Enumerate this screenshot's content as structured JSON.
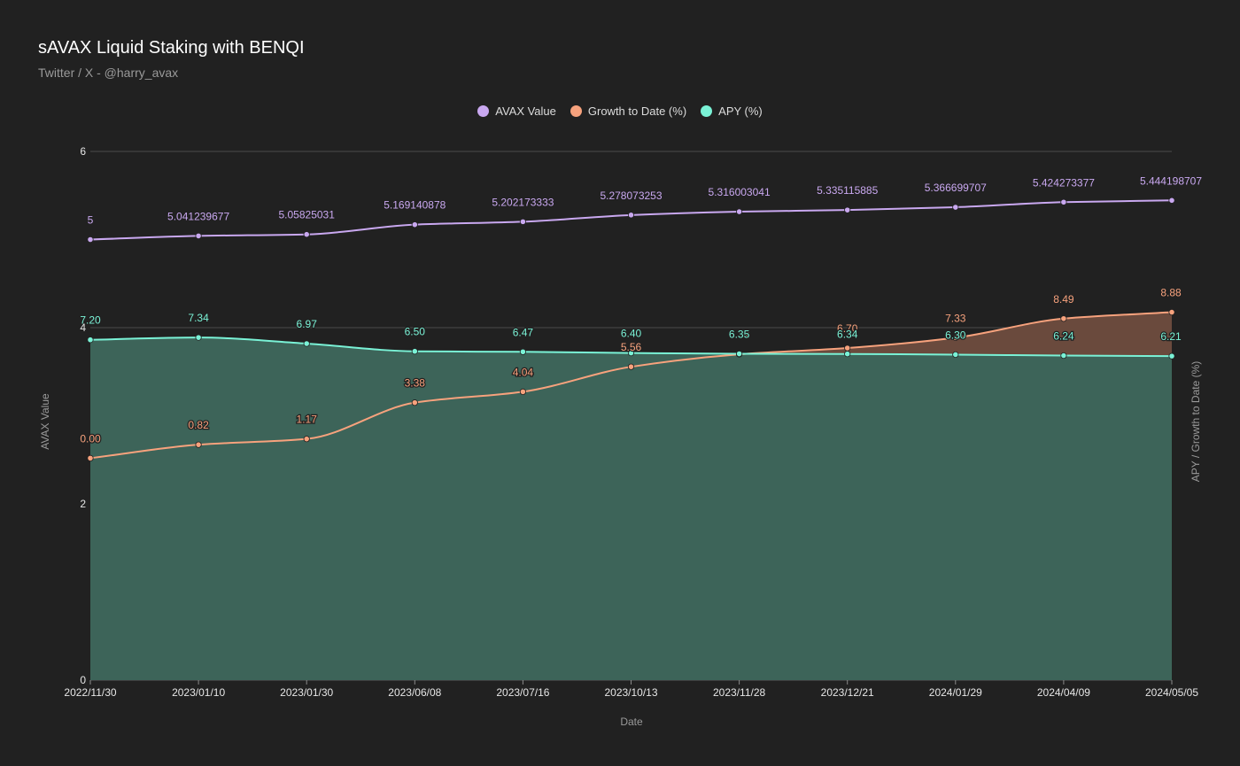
{
  "chart_data": {
    "type": "line",
    "title": "sAVAX Liquid Staking with BENQI",
    "subtitle": "Twitter / X - @harry_avax",
    "xlabel": "Date",
    "ylabel_left": "AVAX Value",
    "ylabel_right": "APY / Growth to Date (%)",
    "ylim_left": [
      0,
      6
    ],
    "yticks_left": [
      0,
      2,
      4,
      6
    ],
    "ylim_right": [
      -13.5,
      18.66
    ],
    "grid": true,
    "legend_position": "top-center",
    "categories": [
      "2022/11/30",
      "2023/01/10",
      "2023/01/30",
      "2023/06/08",
      "2023/07/16",
      "2023/10/13",
      "2023/11/28",
      "2023/12/21",
      "2024/01/29",
      "2024/04/09",
      "2024/05/05"
    ],
    "series": [
      {
        "name": "AVAX Value",
        "axis": "left",
        "color": "#c9a8f0",
        "fill": false,
        "values": [
          5,
          5.041239677,
          5.05825031,
          5.169140878,
          5.202173333,
          5.278073253,
          5.316003041,
          5.335115885,
          5.366699707,
          5.424273377,
          5.444198707
        ],
        "labels": [
          "5",
          "5.041239677",
          "5.05825031",
          "5.169140878",
          "5.202173333",
          "5.278073253",
          "5.316003041",
          "5.335115885",
          "5.366699707",
          "5.424273377",
          "5.444198707"
        ]
      },
      {
        "name": "Growth to Date (%)",
        "axis": "right",
        "color": "#f7a27d",
        "fill": true,
        "fill_color": "#6a4a3d",
        "values": [
          0.0,
          0.82,
          1.17,
          3.38,
          4.04,
          5.56,
          6.32,
          6.7,
          7.33,
          8.49,
          8.88
        ],
        "labels": [
          "0.00",
          "0.82",
          "1.17",
          "3.38",
          "4.04",
          "5.56",
          "6.32",
          "6.70",
          "7.33",
          "8.49",
          "8.88"
        ]
      },
      {
        "name": "APY (%)",
        "axis": "right",
        "color": "#7af2d6",
        "fill": true,
        "fill_color": "#3d6459",
        "values": [
          7.2,
          7.34,
          6.97,
          6.5,
          6.47,
          6.4,
          6.35,
          6.34,
          6.3,
          6.24,
          6.21
        ],
        "labels": [
          "7.20",
          "7.34",
          "6.97",
          "6.50",
          "6.47",
          "6.40",
          "6.35",
          "6.34",
          "6.30",
          "6.24",
          "6.21"
        ]
      }
    ]
  }
}
